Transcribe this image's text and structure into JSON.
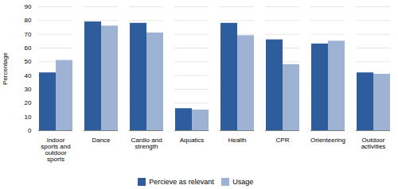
{
  "chart_data": {
    "type": "bar",
    "categories": [
      "Indoor\nsports and\noutdoor\nsports",
      "Dance",
      "Cardio and\nstrength",
      "Aquatics",
      "Health",
      "CPR",
      "Orienteering",
      "Outdoor\nactivities"
    ],
    "series": [
      {
        "name": "Percieve as relevant",
        "color": "#2E5D9E",
        "values": [
          42,
          79,
          78,
          16,
          78,
          66,
          63,
          42
        ]
      },
      {
        "name": "Usage",
        "color": "#9EB3D4",
        "values": [
          51,
          76,
          71,
          15,
          69,
          48,
          65,
          41
        ]
      }
    ],
    "ylabel": "Percentage",
    "ylim": [
      0,
      90
    ],
    "yticks": [
      0,
      10,
      20,
      30,
      40,
      50,
      60,
      70,
      80,
      90
    ],
    "grid": true,
    "legend": "bottom"
  }
}
